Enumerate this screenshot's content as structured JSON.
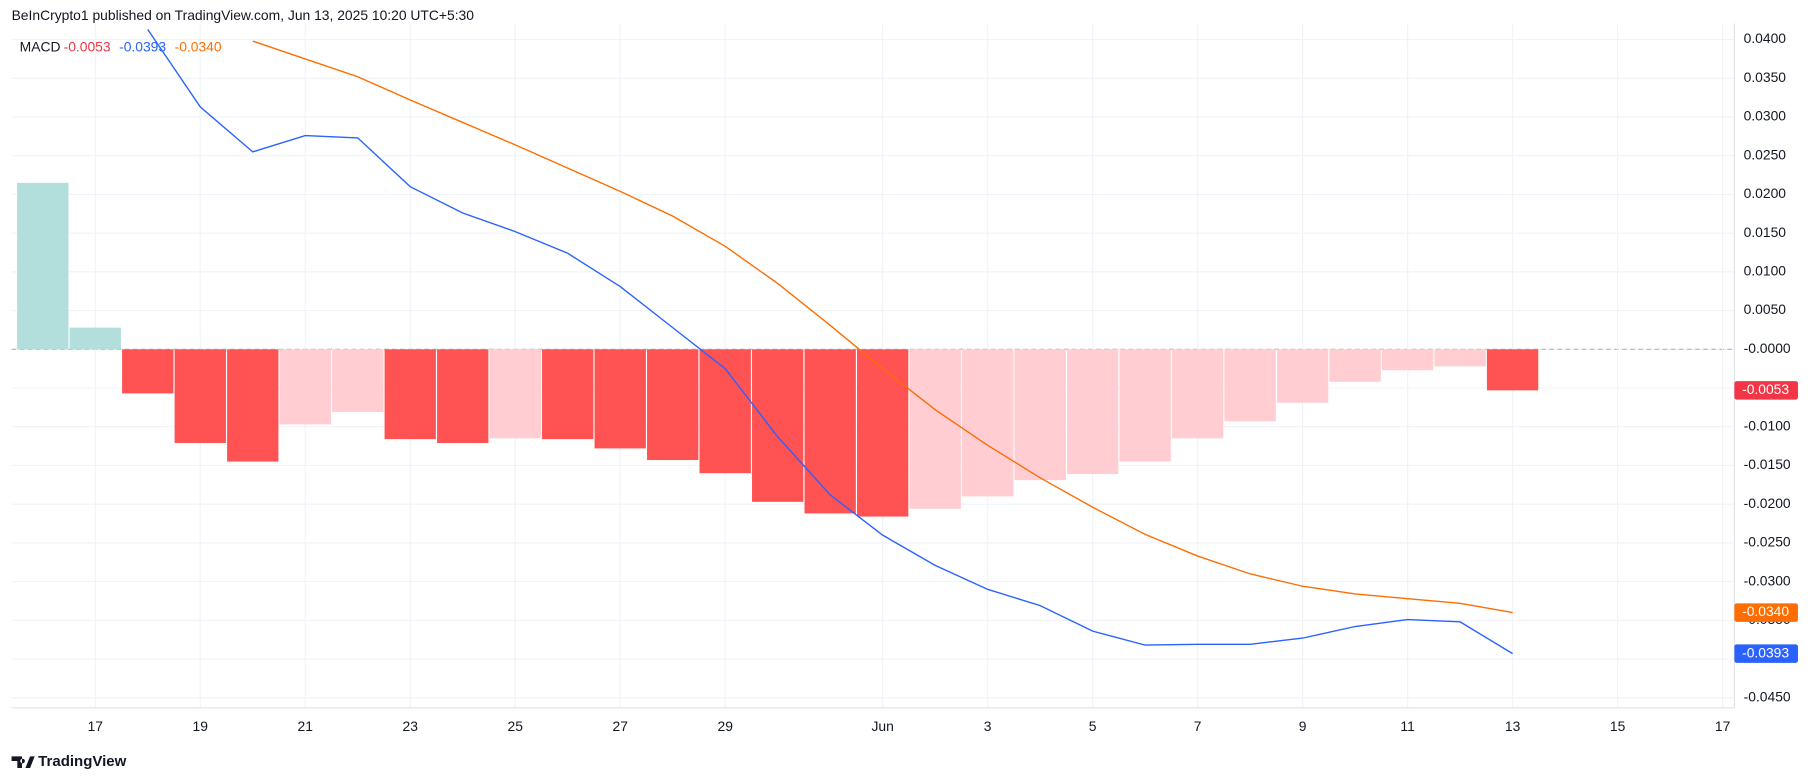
{
  "header": "BeInCrypto1 published on TradingView.com, Jun 13, 2025 10:20 UTC+5:30",
  "footer": "TradingView",
  "chart_data": {
    "type": "macd",
    "title": "MACD",
    "categories": [
      null,
      "17",
      null,
      "19",
      null,
      "21",
      null,
      "23",
      null,
      "25",
      null,
      "27",
      null,
      "29",
      null,
      null,
      "Jun",
      null,
      "3",
      null,
      "5",
      null,
      "7",
      null,
      "9",
      null,
      "11",
      null,
      "13",
      null,
      "15",
      null,
      "17"
    ],
    "histogram": {
      "values": [
        0.0215,
        0.0028,
        -0.0057,
        -0.0121,
        -0.0145,
        -0.0097,
        -0.0081,
        -0.0116,
        -0.0121,
        -0.0115,
        -0.0116,
        -0.0128,
        -0.0143,
        -0.016,
        -0.0197,
        -0.0212,
        -0.0216,
        -0.0206,
        -0.019,
        -0.0169,
        -0.0161,
        -0.0145,
        -0.0115,
        -0.0093,
        -0.0069,
        -0.0042,
        -0.0027,
        -0.0022,
        -0.0053,
        null,
        null,
        null,
        null
      ],
      "colors": [
        "#b2dfdb",
        "#b2dfdb",
        "#ff5252",
        "#ff5252",
        "#ff5252",
        "#ffcdd2",
        "#ffcdd2",
        "#ff5252",
        "#ff5252",
        "#ffcdd2",
        "#ff5252",
        "#ff5252",
        "#ff5252",
        "#ff5252",
        "#ff5252",
        "#ff5252",
        "#ff5252",
        "#ffcdd2",
        "#ffcdd2",
        "#ffcdd2",
        "#ffcdd2",
        "#ffcdd2",
        "#ffcdd2",
        "#ffcdd2",
        "#ffcdd2",
        "#ffcdd2",
        "#ffcdd2",
        "#ffcdd2",
        "#ff5252",
        null,
        null,
        null,
        null
      ],
      "value_labels": [
        null,
        null,
        null,
        null,
        null,
        null,
        null,
        null,
        null,
        null,
        null,
        null,
        null,
        null,
        null,
        null,
        null,
        null,
        null,
        null,
        null,
        null,
        null,
        null,
        null,
        null,
        null,
        null,
        "-0.0053",
        null,
        null,
        null,
        null
      ],
      "label_color": "#f23645"
    },
    "series": [
      {
        "color": "#2962ff",
        "values": [
          null,
          null,
          0.0413,
          0.0313,
          0.0255,
          0.0276,
          0.0273,
          0.021,
          0.0176,
          0.0152,
          0.0124,
          0.0081,
          0.0028,
          -0.0025,
          -0.0113,
          -0.0188,
          -0.024,
          -0.0279,
          -0.031,
          -0.0331,
          -0.0364,
          -0.0382,
          -0.0381,
          -0.0381,
          -0.0373,
          -0.0358,
          -0.0349,
          -0.0352,
          -0.0393,
          null,
          null,
          null,
          null
        ],
        "value_labels": [
          null,
          null,
          null,
          null,
          null,
          null,
          null,
          null,
          null,
          null,
          null,
          null,
          null,
          null,
          null,
          null,
          null,
          null,
          null,
          null,
          null,
          null,
          null,
          null,
          null,
          null,
          null,
          null,
          "-0.0393",
          null,
          null,
          null,
          null
        ]
      },
      {
        "color": "#ff6d00",
        "values": [
          null,
          null,
          null,
          null,
          0.0398,
          0.0375,
          0.0352,
          0.0322,
          0.0293,
          0.0264,
          0.0234,
          0.0204,
          0.0172,
          0.0133,
          0.0085,
          0.0031,
          -0.0025,
          -0.0078,
          -0.0124,
          -0.0166,
          -0.0204,
          -0.0239,
          -0.0267,
          -0.029,
          -0.0306,
          -0.0316,
          -0.0322,
          -0.0328,
          -0.034,
          null,
          null,
          null,
          null
        ],
        "value_labels": [
          null,
          null,
          null,
          null,
          null,
          null,
          null,
          null,
          null,
          null,
          null,
          null,
          null,
          null,
          null,
          null,
          null,
          null,
          null,
          null,
          null,
          null,
          null,
          null,
          null,
          null,
          null,
          null,
          "-0.0340",
          null,
          null,
          null,
          null
        ]
      }
    ],
    "ylim": [
      -0.0463,
      0.0421
    ],
    "yticks": [
      {
        "value": 0.04,
        "label": "0.0400"
      },
      {
        "value": 0.035,
        "label": "0.0350"
      },
      {
        "value": 0.03,
        "label": "0.0300"
      },
      {
        "value": 0.025,
        "label": "0.0250"
      },
      {
        "value": 0.02,
        "label": "0.0200"
      },
      {
        "value": 0.015,
        "label": "0.0150"
      },
      {
        "value": 0.01,
        "label": "0.0100"
      },
      {
        "value": 0.005,
        "label": "0.0050"
      },
      {
        "value": 0,
        "label": "-0.0000"
      },
      {
        "value": -0.005,
        "label": "-0.0050"
      },
      {
        "value": -0.01,
        "label": "-0.0100"
      },
      {
        "value": -0.015,
        "label": "-0.0150"
      },
      {
        "value": -0.02,
        "label": "-0.0200"
      },
      {
        "value": -0.025,
        "label": "-0.0250"
      },
      {
        "value": -0.03,
        "label": "-0.0300"
      },
      {
        "value": -0.035,
        "label": "-0.0350"
      },
      {
        "value": -0.04,
        "label": "-0.0400"
      },
      {
        "value": -0.045,
        "label": "-0.0450"
      }
    ],
    "grid": true
  }
}
